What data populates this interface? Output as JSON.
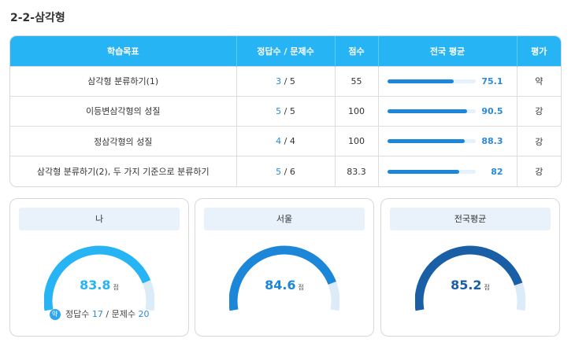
{
  "section_title": "2-2-삼각형",
  "table": {
    "headers": [
      "학습목표",
      "정답수 / 문제수",
      "점수",
      "전국 평균",
      "평가"
    ],
    "rows": [
      {
        "goal": "삼각형 분류하기(1)",
        "correct": "3",
        "sep": "/",
        "total": "5",
        "score": "55",
        "avg": "75.1",
        "avg_value": 75.1,
        "grade": "약"
      },
      {
        "goal": "이등변삼각형의 성질",
        "correct": "5",
        "sep": "/",
        "total": "5",
        "score": "100",
        "avg": "90.5",
        "avg_value": 90.5,
        "grade": "강"
      },
      {
        "goal": "정삼각형의 성질",
        "correct": "4",
        "sep": "/",
        "total": "4",
        "score": "100",
        "avg": "88.3",
        "avg_value": 88.3,
        "grade": "강"
      },
      {
        "goal": "삼각형 분류하기(2), 두 가지 기준으로 분류하기",
        "correct": "5",
        "sep": "/",
        "total": "6",
        "score": "83.3",
        "avg": "82",
        "avg_value": 82,
        "grade": "강"
      }
    ]
  },
  "cards": [
    {
      "title": "나",
      "score": "83.8",
      "unit": "점",
      "score_value": 83.8,
      "color_start": "#27b4f5",
      "color_end": "#27b4f5",
      "badge": "약",
      "correct_label": "정답수",
      "correct": "17",
      "sep": "/",
      "total_label": "문제수",
      "total": "20"
    },
    {
      "title": "서울",
      "score": "84.6",
      "unit": "점",
      "score_value": 84.6,
      "color_start": "#1c86d8",
      "color_end": "#1c86d8"
    },
    {
      "title": "전국평균",
      "score": "85.2",
      "unit": "점",
      "score_value": 85.2,
      "color_start": "#1a5fa6",
      "color_end": "#1a5fa6"
    }
  ],
  "colors": {
    "header": "#27b4f5",
    "accent": "#2a8ad8",
    "track": "#dcebf8"
  }
}
